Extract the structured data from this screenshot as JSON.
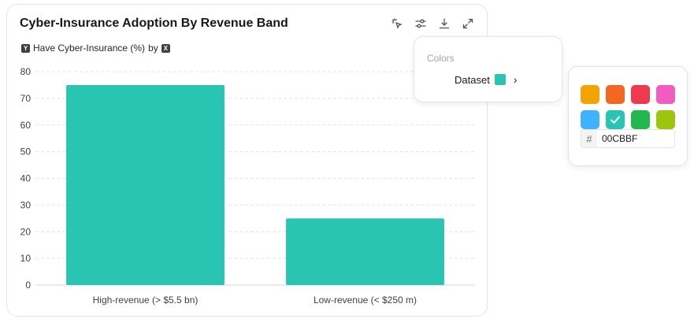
{
  "title": "Cyber-Insurance Adoption By Revenue Band",
  "subtitle": {
    "y_badge": "Y",
    "text": "Have Cyber-Insurance (%)",
    "by": "by",
    "x_badge": "X"
  },
  "toolbar": [
    "pointer-icon",
    "sliders-icon",
    "download-icon",
    "expand-icon"
  ],
  "colors_popover": {
    "heading": "Colors",
    "dataset_label": "Dataset",
    "dataset_color": "#2AC4B3"
  },
  "color_picker": {
    "swatches": [
      "#F5A300",
      "#F26722",
      "#EE3A4F",
      "#F25BBF",
      "#3FB3FF",
      "#2AC4B3",
      "#22B84F",
      "#9BC50F"
    ],
    "selected_index": 5,
    "hash": "#",
    "hex_value": "00CBBF"
  },
  "chart_data": {
    "type": "bar",
    "categories": [
      "High-revenue (> $5.5 bn)",
      "Low-revenue (< $250 m)"
    ],
    "values": [
      75,
      25
    ],
    "ylim": [
      0,
      80
    ],
    "yticks": [
      0,
      10,
      20,
      30,
      40,
      50,
      60,
      70,
      80
    ],
    "grid": true,
    "bar_color": "#2AC4B3"
  }
}
